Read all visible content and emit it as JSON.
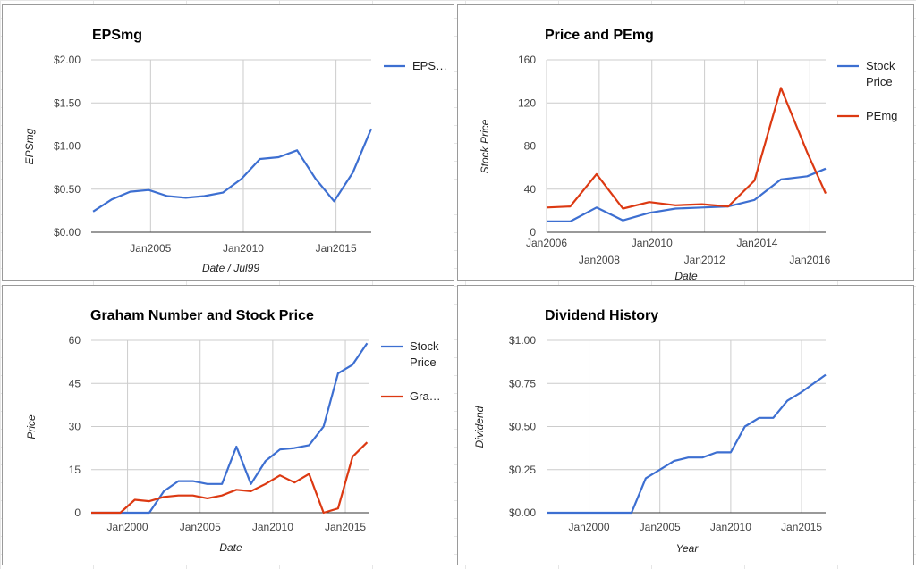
{
  "colors": {
    "blue": "#3d6fd1",
    "red": "#dc3912",
    "grid": "#cccccc",
    "baseline": "#333333"
  },
  "chart_data": [
    {
      "type": "line",
      "title": "EPSmg",
      "xlabel": "Date / Jul99",
      "ylabel": "EPSmg",
      "xlim": [
        2001.8,
        2016.9
      ],
      "ylim": [
        0,
        2
      ],
      "y_ticks": [
        {
          "v": 0,
          "label": "$0.00"
        },
        {
          "v": 0.5,
          "label": "$0.50"
        },
        {
          "v": 1,
          "label": "$1.00"
        },
        {
          "v": 1.5,
          "label": "$1.50"
        },
        {
          "v": 2,
          "label": "$2.00"
        }
      ],
      "x_ticks": [
        {
          "v": 2005,
          "label": "Jan2005",
          "row": 0
        },
        {
          "v": 2010,
          "label": "Jan2010",
          "row": 0
        },
        {
          "v": 2015,
          "label": "Jan2015",
          "row": 0
        }
      ],
      "legend": "right",
      "series": [
        {
          "name": "EPS…",
          "color": "#3d6fd1",
          "x": [
            2001.9,
            2002.9,
            2003.9,
            2004.9,
            2005.9,
            2006.9,
            2007.9,
            2008.9,
            2009.9,
            2010.9,
            2011.9,
            2012.9,
            2013.9,
            2014.9,
            2015.9,
            2016.9
          ],
          "y": [
            0.24,
            0.38,
            0.47,
            0.49,
            0.42,
            0.4,
            0.42,
            0.46,
            0.62,
            0.85,
            0.87,
            0.95,
            0.62,
            0.36,
            0.69,
            1.2
          ]
        }
      ]
    },
    {
      "type": "line",
      "title": "Price and PEmg",
      "xlabel": "Date",
      "ylabel": "Stock Price",
      "xlim": [
        2006,
        2016.6
      ],
      "ylim": [
        0,
        160
      ],
      "y_ticks": [
        {
          "v": 0,
          "label": "0"
        },
        {
          "v": 40,
          "label": "40"
        },
        {
          "v": 80,
          "label": "80"
        },
        {
          "v": 120,
          "label": "120"
        },
        {
          "v": 160,
          "label": "160"
        }
      ],
      "x_ticks": [
        {
          "v": 2006,
          "label": "Jan2006",
          "row": 0
        },
        {
          "v": 2008,
          "label": "Jan2008",
          "row": 1
        },
        {
          "v": 2010,
          "label": "Jan2010",
          "row": 0
        },
        {
          "v": 2012,
          "label": "Jan2012",
          "row": 1
        },
        {
          "v": 2014,
          "label": "Jan2014",
          "row": 0
        },
        {
          "v": 2016,
          "label": "Jan2016",
          "row": 1
        }
      ],
      "legend": "right",
      "series": [
        {
          "name": [
            "Stock",
            "Price"
          ],
          "color": "#3d6fd1",
          "x": [
            2006,
            2006.9,
            2007.9,
            2008.9,
            2009.9,
            2010.9,
            2011.9,
            2012.9,
            2013.9,
            2014.9,
            2015.9,
            2016.6
          ],
          "y": [
            10,
            10,
            23,
            11,
            18,
            22,
            23,
            24,
            30,
            49,
            52,
            59
          ]
        },
        {
          "name": [
            "PEmg"
          ],
          "color": "#dc3912",
          "x": [
            2006,
            2006.9,
            2007.9,
            2008.9,
            2009.9,
            2010.9,
            2011.9,
            2012.9,
            2013.9,
            2014.9,
            2015.9,
            2016.6
          ],
          "y": [
            23,
            24,
            54,
            22,
            28,
            25,
            26,
            24,
            48,
            134,
            74,
            36
          ]
        }
      ]
    },
    {
      "type": "line",
      "title": "Graham Number and Stock Price",
      "xlabel": "Date",
      "ylabel": "Price",
      "xlim": [
        1997.5,
        2016.6
      ],
      "ylim": [
        0,
        60
      ],
      "y_ticks": [
        {
          "v": 0,
          "label": "0"
        },
        {
          "v": 15,
          "label": "15"
        },
        {
          "v": 30,
          "label": "30"
        },
        {
          "v": 45,
          "label": "45"
        },
        {
          "v": 60,
          "label": "60"
        }
      ],
      "x_ticks": [
        {
          "v": 2000,
          "label": "Jan2000",
          "row": 0
        },
        {
          "v": 2005,
          "label": "Jan2005",
          "row": 0
        },
        {
          "v": 2010,
          "label": "Jan2010",
          "row": 0
        },
        {
          "v": 2015,
          "label": "Jan2015",
          "row": 0
        }
      ],
      "legend": "right",
      "series": [
        {
          "name": [
            "Stock",
            "Price"
          ],
          "color": "#3d6fd1",
          "x": [
            1997.5,
            1998.5,
            1999.5,
            2000.5,
            2001.5,
            2002.5,
            2003.5,
            2004.5,
            2005.5,
            2006.5,
            2007.5,
            2008.5,
            2009.5,
            2010.5,
            2011.5,
            2012.5,
            2013.5,
            2014.5,
            2015.5,
            2016.5
          ],
          "y": [
            0,
            0,
            0,
            0,
            0,
            7.5,
            11,
            11,
            10,
            10,
            23,
            10,
            18,
            22,
            22.5,
            23.5,
            30,
            48.5,
            51.5,
            59
          ]
        },
        {
          "name": [
            "Gra…"
          ],
          "color": "#dc3912",
          "x": [
            1997.5,
            1998.5,
            1999.5,
            2000.5,
            2001.5,
            2002.5,
            2003.5,
            2004.5,
            2005.5,
            2006.5,
            2007.5,
            2008.5,
            2009.5,
            2010.5,
            2011.5,
            2012.5,
            2013.5,
            2014.5,
            2015.5,
            2016.5
          ],
          "y": [
            0,
            0,
            0,
            4.5,
            4,
            5.5,
            6,
            6,
            5,
            6,
            8,
            7.5,
            10,
            13,
            10.5,
            13.5,
            0,
            1.5,
            19.5,
            24.5
          ]
        }
      ]
    },
    {
      "type": "line",
      "title": "Dividend History",
      "xlabel": "Year",
      "ylabel": "Dividend",
      "xlim": [
        1997,
        2016.7
      ],
      "ylim": [
        0,
        1
      ],
      "y_ticks": [
        {
          "v": 0,
          "label": "$0.00"
        },
        {
          "v": 0.25,
          "label": "$0.25"
        },
        {
          "v": 0.5,
          "label": "$0.50"
        },
        {
          "v": 0.75,
          "label": "$0.75"
        },
        {
          "v": 1,
          "label": "$1.00"
        }
      ],
      "x_ticks": [
        {
          "v": 2000,
          "label": "Jan2000",
          "row": 0
        },
        {
          "v": 2005,
          "label": "Jan2005",
          "row": 0
        },
        {
          "v": 2010,
          "label": "Jan2010",
          "row": 0
        },
        {
          "v": 2015,
          "label": "Jan2015",
          "row": 0
        }
      ],
      "legend": "none",
      "series": [
        {
          "name": [],
          "color": "#3d6fd1",
          "x": [
            1997,
            1998,
            1999,
            2000,
            2001,
            2002,
            2003,
            2004,
            2005,
            2006,
            2007,
            2008,
            2009,
            2010,
            2011,
            2012,
            2013,
            2014,
            2015,
            2016.7
          ],
          "y": [
            0,
            0,
            0,
            0,
            0,
            0,
            0,
            0.2,
            0.25,
            0.3,
            0.32,
            0.32,
            0.35,
            0.35,
            0.5,
            0.55,
            0.55,
            0.65,
            0.7,
            0.8
          ]
        }
      ]
    }
  ]
}
